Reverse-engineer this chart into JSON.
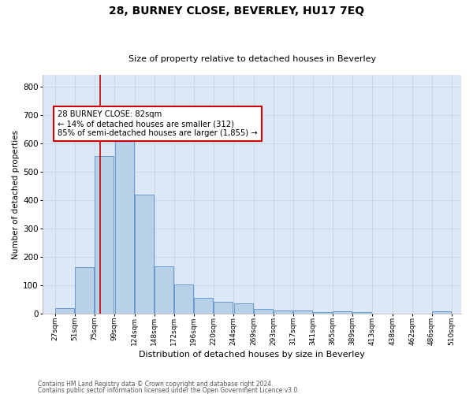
{
  "title": "28, BURNEY CLOSE, BEVERLEY, HU17 7EQ",
  "subtitle": "Size of property relative to detached houses in Beverley",
  "xlabel": "Distribution of detached houses by size in Beverley",
  "ylabel": "Number of detached properties",
  "footer_line1": "Contains HM Land Registry data © Crown copyright and database right 2024.",
  "footer_line2": "Contains public sector information licensed under the Open Government Licence v3.0.",
  "bar_color": "#b8d0e8",
  "bar_edge_color": "#5b8fc9",
  "grid_color": "#c8d8ea",
  "background_color": "#dce8f5",
  "vline_color": "#cc0000",
  "vline_x": 82,
  "annotation_text": "28 BURNEY CLOSE: 82sqm\n← 14% of detached houses are smaller (312)\n85% of semi-detached houses are larger (1,855) →",
  "annotation_box_color": "#ffffff",
  "annotation_box_edge": "#cc0000",
  "bins": [
    27,
    51,
    75,
    99,
    124,
    148,
    172,
    196,
    220,
    244,
    269,
    293,
    317,
    341,
    365,
    389,
    413,
    438,
    462,
    486,
    510
  ],
  "values": [
    18,
    162,
    555,
    612,
    418,
    165,
    102,
    55,
    40,
    35,
    15,
    10,
    10,
    3,
    8,
    3,
    0,
    0,
    0,
    8
  ],
  "ylim": [
    0,
    840
  ],
  "yticks": [
    0,
    100,
    200,
    300,
    400,
    500,
    600,
    700,
    800
  ]
}
